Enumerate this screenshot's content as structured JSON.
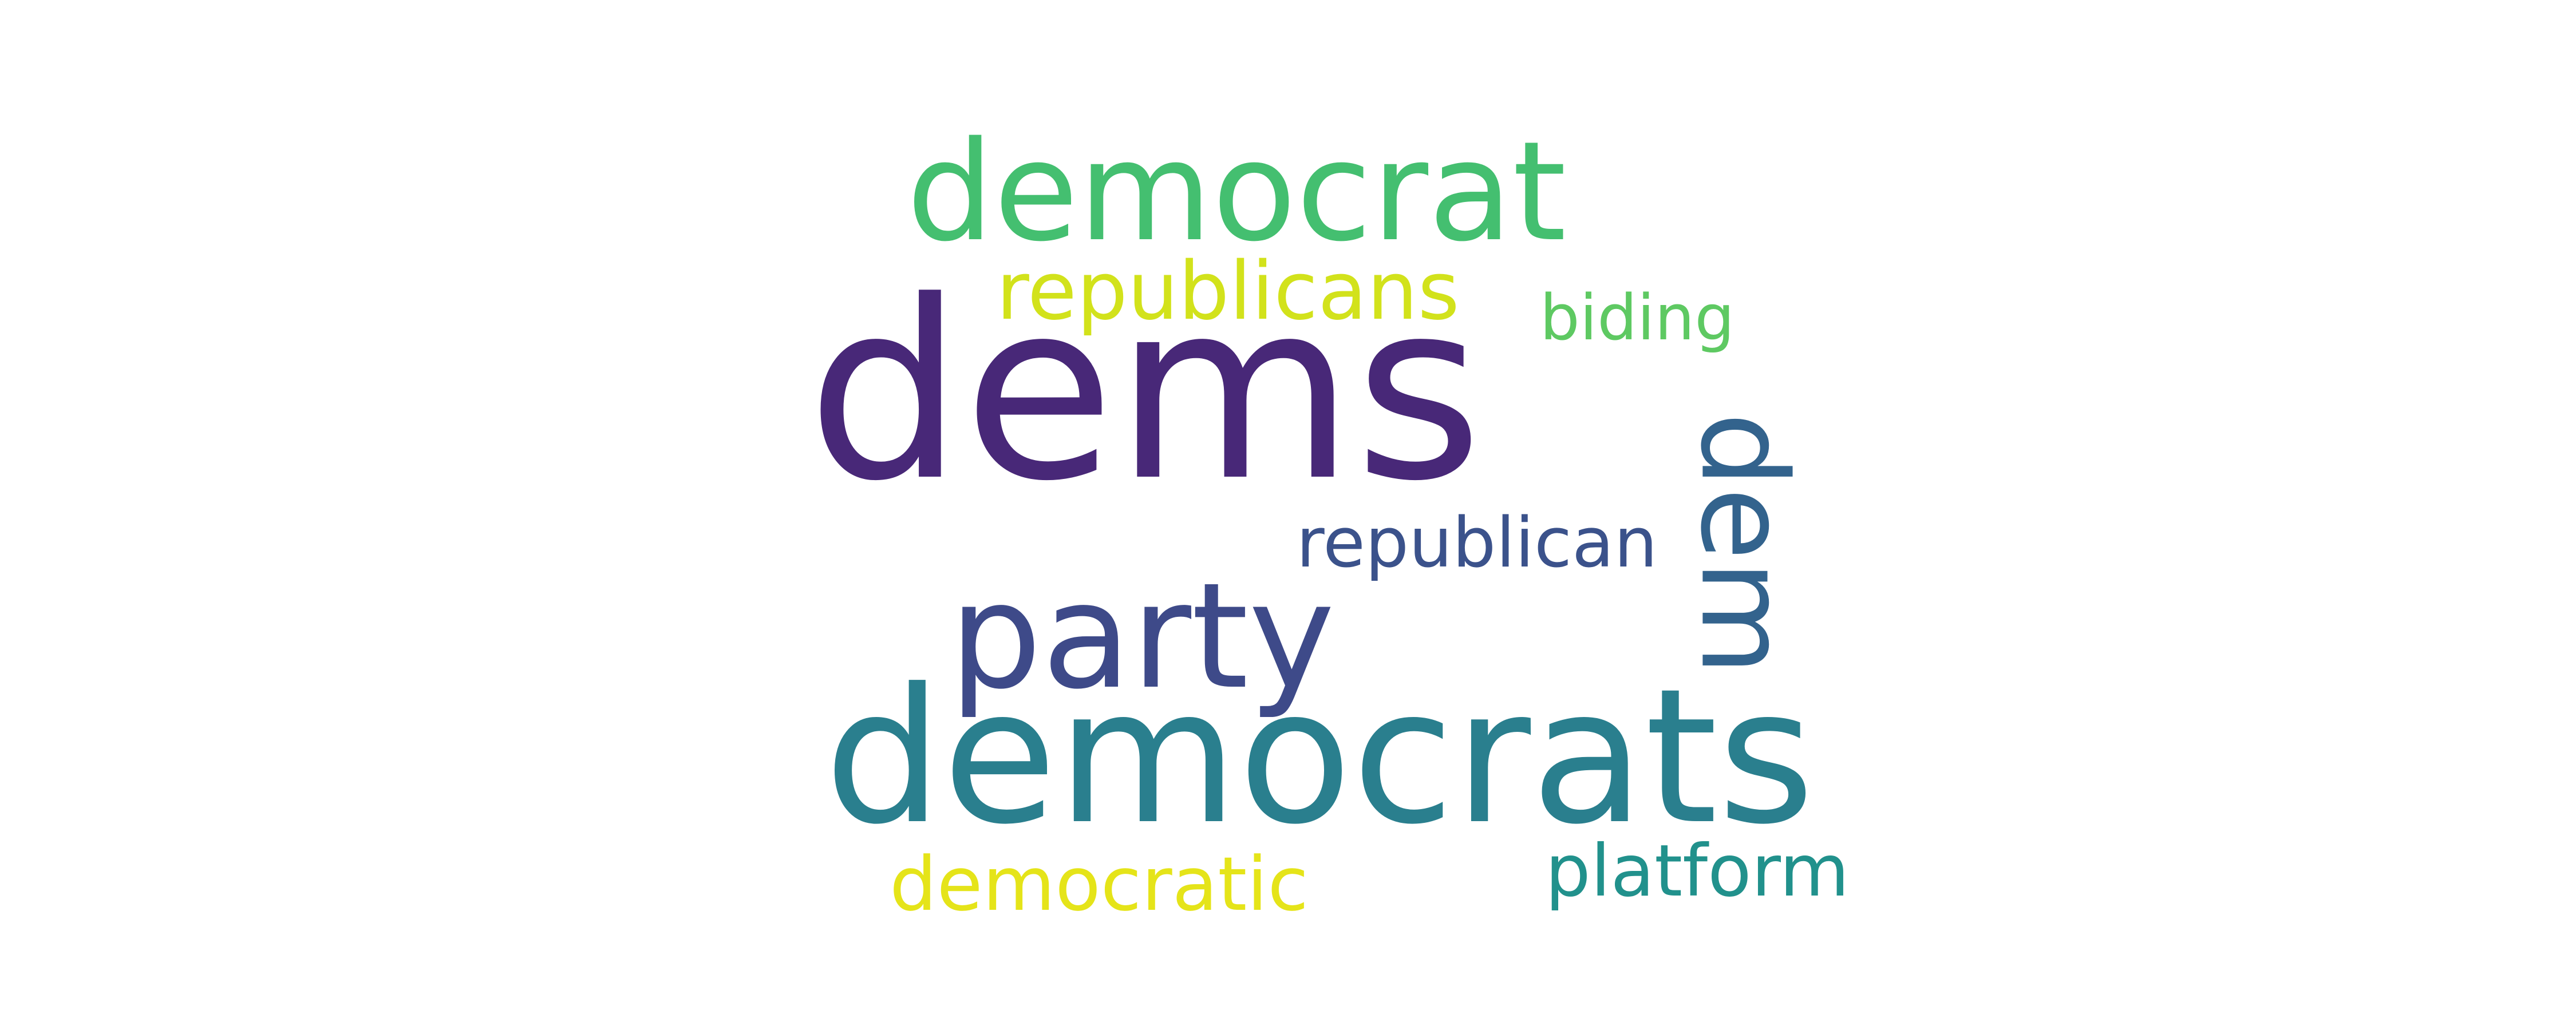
{
  "word_cloud": {
    "words": [
      {
        "text": "dems",
        "color": "#482878",
        "orientation": "horizontal"
      },
      {
        "text": "democrats",
        "color": "#2a7f8e",
        "orientation": "horizontal"
      },
      {
        "text": "democrat",
        "color": "#44bf70",
        "orientation": "horizontal"
      },
      {
        "text": "party",
        "color": "#3e4a89",
        "orientation": "horizontal"
      },
      {
        "text": "dem",
        "color": "#33638d",
        "orientation": "vertical"
      },
      {
        "text": "republicans",
        "color": "#d2e21b",
        "orientation": "horizontal"
      },
      {
        "text": "republican",
        "color": "#3b528b",
        "orientation": "horizontal"
      },
      {
        "text": "platform",
        "color": "#21918c",
        "orientation": "horizontal"
      },
      {
        "text": "democratic",
        "color": "#e5e419",
        "orientation": "horizontal"
      },
      {
        "text": "biding",
        "color": "#5ec962",
        "orientation": "horizontal"
      }
    ]
  }
}
